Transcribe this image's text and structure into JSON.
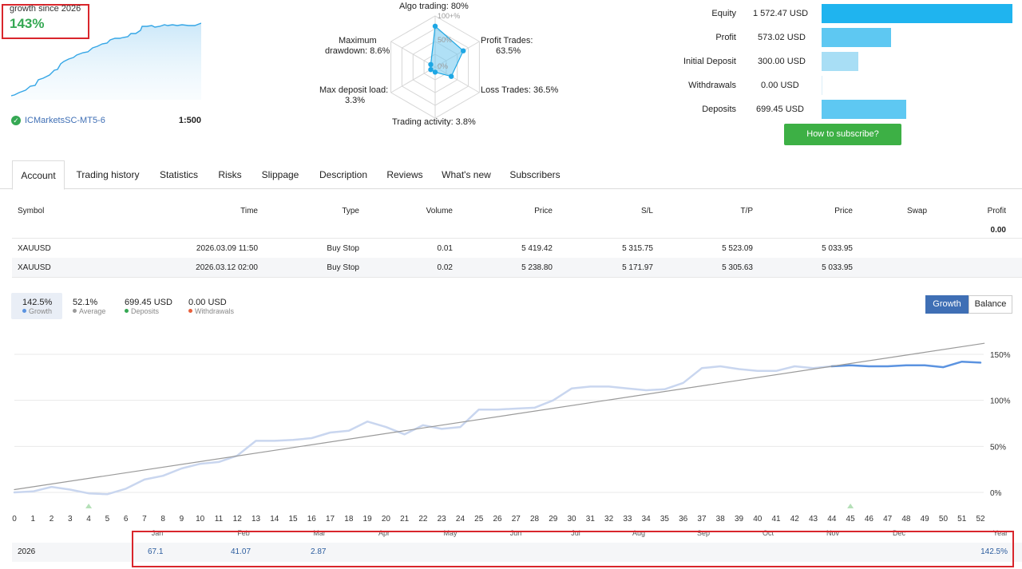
{
  "summary": {
    "growth_label": "growth since 2026",
    "growth_value": "143%",
    "broker": "ICMarketsSC-MT5-6",
    "leverage": "1:500"
  },
  "radar": {
    "algo_trading": "Algo trading: 80%",
    "profit_trades_1": "Profit Trades:",
    "profit_trades_2": "63.5%",
    "loss_trades": "Loss Trades: 36.5%",
    "trading_activity": "Trading activity: 3.8%",
    "max_load_1": "Max deposit load:",
    "max_load_2": "3.3%",
    "max_dd_1": "Maximum",
    "max_dd_2": "drawdown: 8.6%",
    "scale_100": "100+%",
    "scale_50": "50%",
    "scale_0": "0%",
    "values": [
      80,
      63.5,
      36.5,
      3.8,
      3.3,
      8.6
    ]
  },
  "stats": [
    {
      "label": "Equity",
      "value": "1 572.47 USD",
      "fraction": 1.0,
      "color": "#1fb4ef"
    },
    {
      "label": "Profit",
      "value": "573.02 USD",
      "fraction": 0.364,
      "color": "#5ec8f2"
    },
    {
      "label": "Initial Deposit",
      "value": "300.00 USD",
      "fraction": 0.191,
      "color": "#a8def5"
    },
    {
      "label": "Withdrawals",
      "value": "0.00 USD",
      "fraction": 0.0,
      "color": "#a8def5"
    },
    {
      "label": "Deposits",
      "value": "699.45 USD",
      "fraction": 0.445,
      "color": "#5ec8f2"
    }
  ],
  "subscribe_label": "How to subscribe?",
  "tabs": [
    "Account",
    "Trading history",
    "Statistics",
    "Risks",
    "Slippage",
    "Description",
    "Reviews",
    "What's new",
    "Subscribers"
  ],
  "orders": {
    "headers": [
      "Symbol",
      "Time",
      "Type",
      "Volume",
      "Price",
      "S/L",
      "T/P",
      "Price",
      "Swap",
      "Profit"
    ],
    "total_profit": "0.00",
    "rows": [
      [
        "XAUUSD",
        "2026.03.09 11:50",
        "Buy Stop",
        "0.01",
        "5 419.42",
        "5 315.75",
        "5 523.09",
        "5 033.95"
      ],
      [
        "XAUUSD",
        "2026.03.12 02:00",
        "Buy Stop",
        "0.02",
        "5 238.80",
        "5 171.97",
        "5 305.63",
        "5 033.95"
      ]
    ]
  },
  "legend": {
    "growth_value": "142.5%",
    "growth_label": "Growth",
    "average_value": "52.1%",
    "average_label": "Average",
    "deposits_value": "699.45 USD",
    "deposits_label": "Deposits",
    "withdrawals_value": "0.00 USD",
    "withdrawals_label": "Withdrawals"
  },
  "toggle": {
    "growth": "Growth",
    "balance": "Balance"
  },
  "chart_data": {
    "type": "line",
    "x": [
      0,
      1,
      2,
      3,
      4,
      5,
      6,
      7,
      8,
      9,
      10,
      11,
      12,
      13,
      14,
      15,
      16,
      17,
      18,
      19,
      20,
      21,
      22,
      23,
      24,
      25,
      26,
      27,
      28,
      29,
      30,
      31,
      32,
      33,
      34,
      35,
      36,
      37,
      38,
      39,
      40,
      41,
      42,
      43,
      44,
      45,
      46,
      47,
      48,
      49,
      50,
      51,
      52
    ],
    "x_ticks": [
      "0",
      "1",
      "2",
      "3",
      "4",
      "5",
      "6",
      "7",
      "8",
      "9",
      "10",
      "11",
      "12",
      "13",
      "14",
      "15",
      "16",
      "17",
      "18",
      "19",
      "20",
      "21",
      "22",
      "23",
      "24",
      "25",
      "26",
      "27",
      "28",
      "29",
      "30",
      "31",
      "32",
      "33",
      "34",
      "35",
      "36",
      "37",
      "38",
      "39",
      "40",
      "41",
      "42",
      "43",
      "44",
      "45",
      "46",
      "47",
      "48",
      "49",
      "50",
      "51",
      "52"
    ],
    "months": [
      "Jan",
      "Feb",
      "Mar",
      "Apr",
      "May",
      "Jun",
      "Jul",
      "Aug",
      "Sep",
      "Oct",
      "Nov",
      "Dec",
      "Year"
    ],
    "y_ticks": [
      "150%",
      "100%",
      "50%",
      "0%"
    ],
    "ylim": [
      0,
      150
    ],
    "series": [
      {
        "values": [
          0,
          1,
          6,
          3,
          -1,
          -2,
          4,
          14,
          18,
          26,
          31,
          33,
          40,
          56,
          56,
          57,
          59,
          65,
          67,
          77,
          71,
          63,
          73,
          69,
          71,
          90,
          90,
          91,
          92,
          100,
          113,
          115,
          115,
          113,
          111,
          112,
          119,
          135,
          137,
          134,
          132,
          132,
          137,
          135,
          137,
          null,
          null,
          null,
          null,
          null,
          null,
          null,
          null
        ],
        "color": "#c9d6ef"
      },
      {
        "values": [
          null,
          null,
          null,
          null,
          null,
          null,
          null,
          null,
          null,
          null,
          null,
          null,
          null,
          null,
          null,
          null,
          null,
          null,
          null,
          null,
          null,
          null,
          null,
          null,
          null,
          null,
          null,
          null,
          null,
          null,
          null,
          null,
          null,
          null,
          null,
          null,
          null,
          null,
          null,
          null,
          null,
          null,
          null,
          null,
          137,
          138,
          137,
          137,
          138,
          138,
          136,
          142,
          141
        ],
        "color": "#5b93e0"
      },
      {
        "values": [
          3,
          162
        ],
        "x": [
          0,
          52.2
        ],
        "color": "#9a9a9a"
      }
    ],
    "markers_x": [
      4,
      45
    ]
  },
  "yearly": {
    "year": "2026",
    "values": [
      "67.1",
      "41.07",
      "2.87"
    ],
    "total": "142.5%"
  },
  "colors": {
    "accent": "#3f6fb5",
    "positive": "#35a853",
    "highlight_border": "#d9262c",
    "subscribe": "#3db045"
  }
}
